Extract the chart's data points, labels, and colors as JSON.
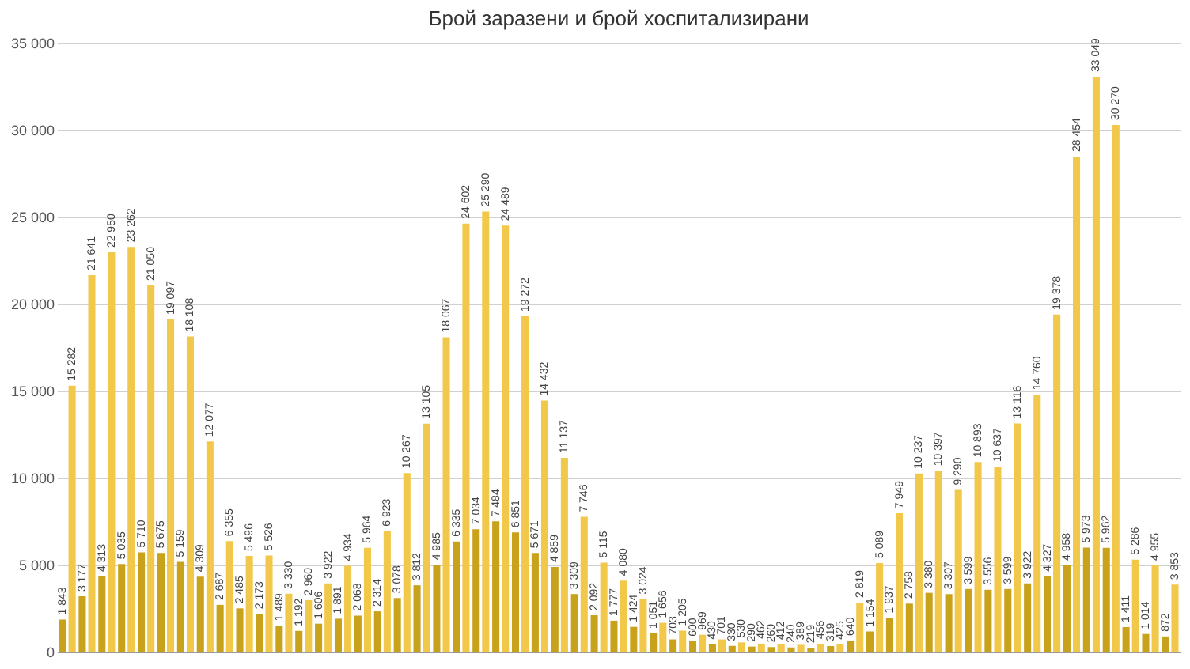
{
  "chart_data": {
    "type": "bar",
    "title": "Брой заразени и брой хоспитализирани",
    "categories": [
      null,
      null,
      null,
      null,
      null,
      null,
      null,
      null,
      null,
      null,
      null,
      null,
      null,
      null,
      null,
      null,
      null,
      null,
      null,
      null,
      null,
      null,
      null,
      null,
      null,
      null,
      null,
      null,
      null,
      null,
      null,
      null,
      null,
      null,
      null,
      null,
      null,
      null,
      null,
      null,
      null,
      null,
      null,
      null,
      null,
      null,
      null,
      null,
      null,
      null,
      null,
      null,
      null,
      null,
      null,
      null,
      null
    ],
    "series": [
      {
        "color": "#c9a21c",
        "values": [
          1843,
          3177,
          4313,
          5035,
          5710,
          5675,
          5159,
          4309,
          2687,
          2485,
          2173,
          1489,
          1192,
          1606,
          1891,
          2068,
          2314,
          3078,
          3812,
          4985,
          6335,
          7034,
          7484,
          6851,
          5671,
          4859,
          3309,
          2092,
          1777,
          1424,
          1051,
          703,
          600,
          430,
          330,
          290,
          260,
          240,
          219,
          319,
          640,
          1154,
          1937,
          2758,
          3380,
          3307,
          3599,
          3556,
          3599,
          3922,
          4327,
          4958,
          5973,
          5962,
          1411,
          1014,
          872
        ]
      },
      {
        "color": "#f2c84b",
        "values": [
          15282,
          21641,
          22950,
          23262,
          21050,
          19097,
          18108,
          12077,
          6355,
          5496,
          5526,
          3330,
          2960,
          3922,
          4934,
          5964,
          6923,
          10267,
          13105,
          18067,
          24602,
          25290,
          24489,
          19272,
          14432,
          11137,
          7746,
          5115,
          4080,
          3024,
          1656,
          1205,
          969,
          701,
          530,
          462,
          412,
          389,
          456,
          425,
          2819,
          5089,
          7949,
          10237,
          10397,
          9290,
          10893,
          10637,
          13116,
          14760,
          19378,
          28454,
          33049,
          30270,
          5286,
          4955,
          3853
        ]
      }
    ],
    "ylim": [
      0,
      35000
    ],
    "yticks": [
      {
        "value": 0,
        "label": "0"
      },
      {
        "value": 5000,
        "label": "5 000"
      },
      {
        "value": 10000,
        "label": "10 000"
      },
      {
        "value": 15000,
        "label": "15 000"
      },
      {
        "value": 20000,
        "label": "20 000"
      },
      {
        "value": 25000,
        "label": "25 000"
      },
      {
        "value": 30000,
        "label": "30 000"
      },
      {
        "value": 35000,
        "label": "35 000"
      }
    ],
    "grid": "y",
    "data_labels": true,
    "legend": false
  }
}
